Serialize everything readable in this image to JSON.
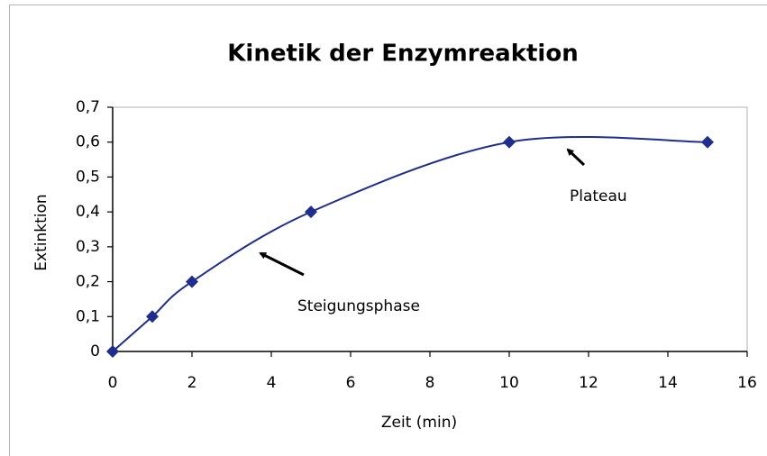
{
  "chart_data": {
    "type": "line",
    "title": "Kinetik der Enzymreaktion",
    "x_label": "Zeit (min)",
    "y_label": "Extinktion",
    "x": [
      0,
      1,
      2,
      5,
      10,
      15
    ],
    "series": [
      {
        "name": "Extinktion",
        "color": "#1f2d8c",
        "values": [
          0,
          0.1,
          0.2,
          0.4,
          0.6,
          0.6
        ]
      }
    ],
    "xlim": [
      0,
      16
    ],
    "xticks": [
      0,
      2,
      4,
      6,
      8,
      10,
      12,
      14,
      16
    ],
    "ylim": [
      0,
      0.7
    ],
    "yticks": [
      0,
      {
        "value": 0.1,
        "label": "0,1"
      },
      {
        "value": 0.2,
        "label": "0,2"
      },
      {
        "value": 0.3,
        "label": "0,3"
      },
      {
        "value": 0.4,
        "label": "0,4"
      },
      {
        "value": 0.5,
        "label": "0,5"
      },
      {
        "value": 0.6,
        "label": "0,6"
      },
      {
        "value": 0.7,
        "label": "0,7"
      }
    ],
    "smooth": true,
    "grid": false,
    "annotations": [
      "Steigungsphase",
      "Plateau"
    ]
  }
}
